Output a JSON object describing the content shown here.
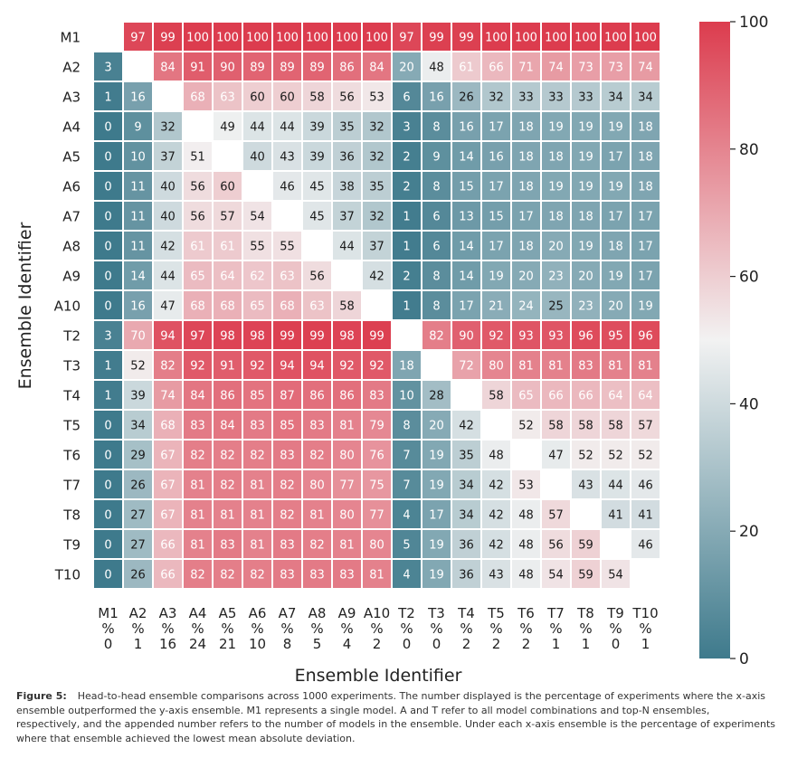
{
  "chart_data": {
    "type": "heatmap",
    "x_labels": [
      "M1",
      "A2",
      "A3",
      "A4",
      "A5",
      "A6",
      "A7",
      "A8",
      "A9",
      "A10",
      "T2",
      "T3",
      "T4",
      "T5",
      "T6",
      "T7",
      "T8",
      "T9",
      "T10"
    ],
    "x_sublabels": [
      "0",
      "1",
      "16",
      "24",
      "21",
      "10",
      "8",
      "5",
      "4",
      "2",
      "0",
      "0",
      "2",
      "2",
      "2",
      "1",
      "1",
      "0",
      "1"
    ],
    "x_sublabel_prefix": "%",
    "y_labels": [
      "M1",
      "A2",
      "A3",
      "A4",
      "A5",
      "A6",
      "A7",
      "A8",
      "A9",
      "A10",
      "T2",
      "T3",
      "T4",
      "T5",
      "T6",
      "T7",
      "T8",
      "T9",
      "T10"
    ],
    "xlabel": "Ensemble Identifier",
    "ylabel": "Ensemble Identifier",
    "colorbar": {
      "min": 0,
      "max": 100,
      "ticks": [
        "0",
        "20",
        "40",
        "60",
        "80",
        "100"
      ],
      "low_color": "#3e7a8c",
      "mid_color": "#f2f2f2",
      "high_color": "#dc3c4e"
    },
    "values": [
      [
        null,
        97,
        99,
        100,
        100,
        100,
        100,
        100,
        100,
        100,
        97,
        99,
        99,
        100,
        100,
        100,
        100,
        100,
        100
      ],
      [
        3,
        null,
        84,
        91,
        90,
        89,
        89,
        89,
        86,
        84,
        20,
        48,
        61,
        66,
        71,
        74,
        73,
        73,
        74
      ],
      [
        1,
        16,
        null,
        68,
        63,
        60,
        60,
        58,
        56,
        53,
        6,
        16,
        26,
        32,
        33,
        33,
        33,
        34,
        34
      ],
      [
        0,
        9,
        32,
        null,
        49,
        44,
        44,
        39,
        35,
        32,
        3,
        8,
        16,
        17,
        18,
        19,
        19,
        19,
        18
      ],
      [
        0,
        10,
        37,
        51,
        null,
        40,
        43,
        39,
        36,
        32,
        2,
        9,
        14,
        16,
        18,
        18,
        19,
        17,
        18
      ],
      [
        0,
        11,
        40,
        56,
        60,
        null,
        46,
        45,
        38,
        35,
        2,
        8,
        15,
        17,
        18,
        19,
        19,
        19,
        18
      ],
      [
        0,
        11,
        40,
        56,
        57,
        54,
        null,
        45,
        37,
        32,
        1,
        6,
        13,
        15,
        17,
        18,
        18,
        17,
        17
      ],
      [
        0,
        11,
        42,
        61,
        61,
        55,
        55,
        null,
        44,
        37,
        1,
        6,
        14,
        17,
        18,
        20,
        19,
        18,
        17
      ],
      [
        0,
        14,
        44,
        65,
        64,
        62,
        63,
        56,
        null,
        42,
        2,
        8,
        14,
        19,
        20,
        23,
        20,
        19,
        17
      ],
      [
        0,
        16,
        47,
        68,
        68,
        65,
        68,
        63,
        58,
        null,
        1,
        8,
        17,
        21,
        24,
        25,
        23,
        20,
        19
      ],
      [
        3,
        70,
        94,
        97,
        98,
        98,
        99,
        99,
        98,
        99,
        null,
        82,
        90,
        92,
        93,
        93,
        96,
        95,
        96
      ],
      [
        1,
        52,
        82,
        92,
        91,
        92,
        94,
        94,
        92,
        92,
        18,
        null,
        72,
        80,
        81,
        81,
        83,
        81,
        81
      ],
      [
        1,
        39,
        74,
        84,
        86,
        85,
        87,
        86,
        86,
        83,
        10,
        28,
        null,
        58,
        65,
        66,
        66,
        64,
        64
      ],
      [
        0,
        34,
        68,
        83,
        84,
        83,
        85,
        83,
        81,
        79,
        8,
        20,
        42,
        null,
        52,
        58,
        58,
        58,
        57
      ],
      [
        0,
        29,
        67,
        82,
        82,
        82,
        83,
        82,
        80,
        76,
        7,
        19,
        35,
        48,
        null,
        47,
        52,
        52,
        52
      ],
      [
        0,
        26,
        67,
        81,
        82,
        81,
        82,
        80,
        77,
        75,
        7,
        19,
        34,
        42,
        53,
        null,
        43,
        44,
        46
      ],
      [
        0,
        27,
        67,
        81,
        81,
        81,
        82,
        81,
        80,
        77,
        4,
        17,
        34,
        42,
        48,
        57,
        null,
        41,
        41
      ],
      [
        0,
        27,
        66,
        81,
        83,
        81,
        83,
        82,
        81,
        80,
        5,
        19,
        36,
        42,
        48,
        56,
        59,
        null,
        46
      ],
      [
        0,
        26,
        66,
        82,
        82,
        82,
        83,
        83,
        83,
        81,
        4,
        19,
        36,
        43,
        48,
        54,
        59,
        54,
        null
      ]
    ]
  },
  "caption": {
    "label": "Figure 5:",
    "text": "Head-to-head ensemble comparisons across 1000 experiments. The number displayed is the percentage of experiments where the x-axis ensemble outperformed the y-axis ensemble. M1 represents a single model. A and T refer to all model combinations and top-N ensembles, respectively, and the appended number refers to the number of models in the ensemble. Under each x-axis ensemble is the percentage of experiments where that ensemble achieved the lowest mean absolute deviation."
  }
}
